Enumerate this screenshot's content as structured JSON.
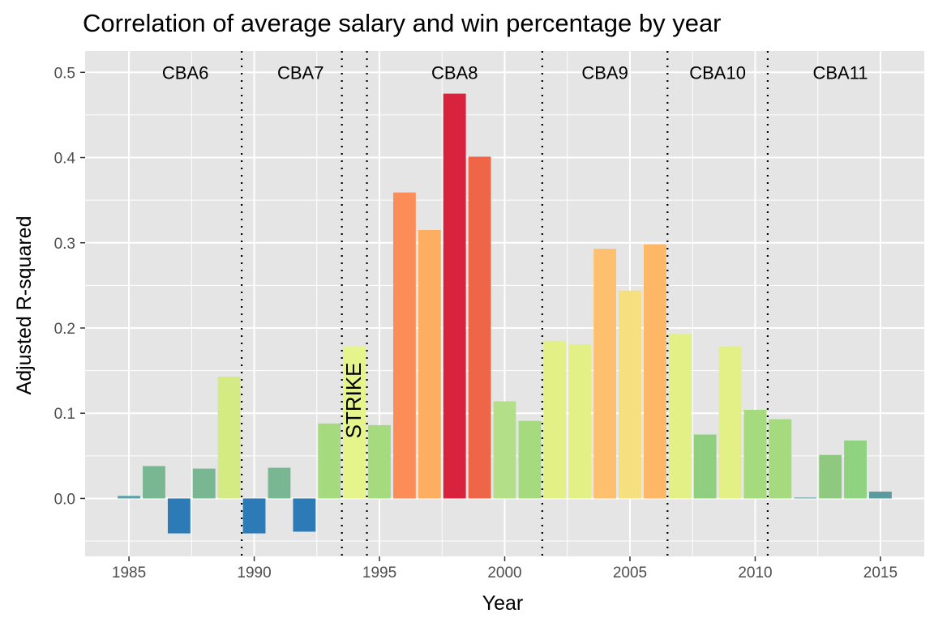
{
  "chart_data": {
    "type": "bar",
    "title": "Correlation of average salary and win percentage by year",
    "xlabel": "Year",
    "ylabel": "Adjusted R-squared",
    "xlim": [
      1983.25,
      2016.75
    ],
    "ylim": [
      -0.068,
      0.525
    ],
    "x_ticks": [
      1985,
      1990,
      1995,
      2000,
      2005,
      2010,
      2015
    ],
    "y_ticks": [
      0.0,
      0.1,
      0.2,
      0.3,
      0.4,
      0.5
    ],
    "y_tick_labels": [
      "0.0",
      "0.1",
      "0.2",
      "0.3",
      "0.4",
      "0.5"
    ],
    "grid": true,
    "x": [
      1985,
      1986,
      1987,
      1988,
      1989,
      1990,
      1991,
      1992,
      1993,
      1994,
      1995,
      1996,
      1997,
      1998,
      1999,
      2000,
      2001,
      2002,
      2003,
      2004,
      2005,
      2006,
      2007,
      2008,
      2009,
      2010,
      2011,
      2012,
      2013,
      2014,
      2015
    ],
    "values": [
      0.003,
      0.038,
      -0.041,
      0.035,
      0.143,
      -0.041,
      0.036,
      -0.039,
      0.088,
      0.178,
      0.086,
      0.359,
      0.315,
      0.475,
      0.401,
      0.114,
      0.091,
      0.185,
      0.181,
      0.293,
      0.244,
      0.298,
      0.193,
      0.075,
      0.178,
      0.104,
      0.093,
      0.001,
      0.051,
      0.068,
      0.008
    ],
    "colors": [
      "#5aa0a5",
      "#79b793",
      "#2c7bb6",
      "#79b793",
      "#d4eb84",
      "#2c7bb6",
      "#79b793",
      "#2c7bb6",
      "#a6da7f",
      "#e6f48c",
      "#a6da7f",
      "#fc8d59",
      "#fdae61",
      "#d7233e",
      "#ef6548",
      "#b3df88",
      "#a6da7f",
      "#e2f085",
      "#e2f085",
      "#fec06e",
      "#f6df7f",
      "#fdb766",
      "#e2f085",
      "#8fcf7f",
      "#e2f085",
      "#a6da7f",
      "#a6da7f",
      "#5aa0a5",
      "#8fc97f",
      "#8fd27f",
      "#5a9a9e"
    ],
    "dividers": [
      1989.5,
      1993.5,
      1994.5,
      2001.5,
      2006.5,
      2010.5
    ],
    "annotations": [
      {
        "text": "CBA6",
        "x": 1987.25,
        "y": 0.5
      },
      {
        "text": "CBA7",
        "x": 1991.85,
        "y": 0.5
      },
      {
        "text": "CBA8",
        "x": 1998.0,
        "y": 0.5
      },
      {
        "text": "CBA9",
        "x": 2004.0,
        "y": 0.5
      },
      {
        "text": "CBA10",
        "x": 2008.5,
        "y": 0.5
      },
      {
        "text": "CBA11",
        "x": 2013.4,
        "y": 0.5
      },
      {
        "text": "STRIKE",
        "x": 1994.0,
        "y": 0.115,
        "rotate": true
      }
    ],
    "colors_theme": {
      "panel": "#e5e5e5",
      "grid": "#ffffff",
      "tick_text": "#4d4d4d",
      "tick_mark": "#333333"
    }
  }
}
